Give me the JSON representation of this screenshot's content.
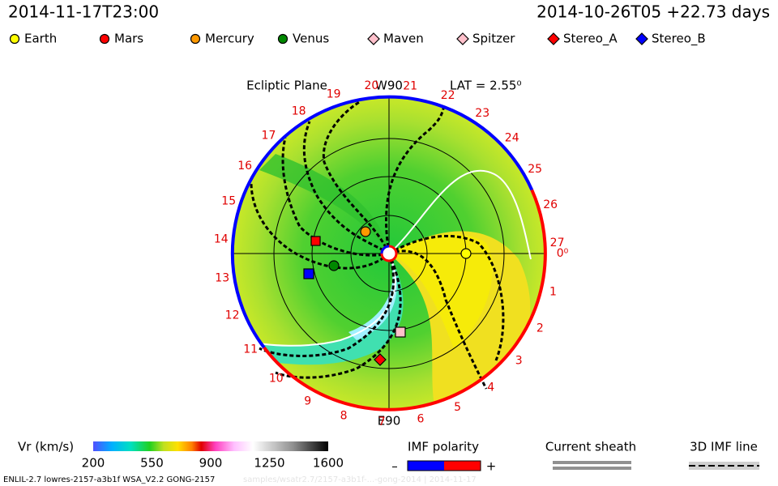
{
  "header": {
    "left": "2014-11-17T23:00",
    "right": "2014-10-26T05 +22.73 days"
  },
  "legend": [
    {
      "name": "Earth",
      "color": "#ffff00",
      "shape": "circle"
    },
    {
      "name": "Mars",
      "color": "#ff0000",
      "shape": "circle"
    },
    {
      "name": "Mercury",
      "color": "#ff9900",
      "shape": "circle"
    },
    {
      "name": "Venus",
      "color": "#008800",
      "shape": "circle"
    },
    {
      "name": "Maven",
      "color": "#ffc0cb",
      "shape": "diamond"
    },
    {
      "name": "Spitzer",
      "color": "#ffc0cb",
      "shape": "diamond"
    },
    {
      "name": "Stereo_A",
      "color": "#ff0000",
      "shape": "diamond"
    },
    {
      "name": "Stereo_B",
      "color": "#0000ff",
      "shape": "diamond"
    }
  ],
  "plot": {
    "title": "Ecliptic Plane",
    "top_label": "W90",
    "bottom_label": "E90",
    "lat_label": "LAT = 2.55⁰",
    "longitude_labels": [
      "0⁰",
      "1",
      "2",
      "3",
      "4",
      "5",
      "6",
      "7",
      "8",
      "9",
      "10",
      "11",
      "12",
      "13",
      "14",
      "15",
      "16",
      "17",
      "18",
      "19",
      "20",
      "21",
      "22",
      "23",
      "24",
      "25",
      "26",
      "27"
    ]
  },
  "colorbar": {
    "label": "Vr (km/s)",
    "range": [
      200,
      1600
    ],
    "ticks": [
      200,
      550,
      900,
      1250,
      1600
    ]
  },
  "imf": {
    "title": "IMF polarity",
    "minus": "–",
    "plus": "+"
  },
  "sheath": {
    "label": "Current sheath"
  },
  "imf_line": {
    "label": "3D IMF line"
  },
  "footer": {
    "left": "ENLIL-2.7 lowres-2157-a3b1f WSA_V2.2 GONG-2157",
    "right": "samples/wsatr2.7/2157-a3b1f-...-gong-2014 | 2014-11-17"
  }
}
